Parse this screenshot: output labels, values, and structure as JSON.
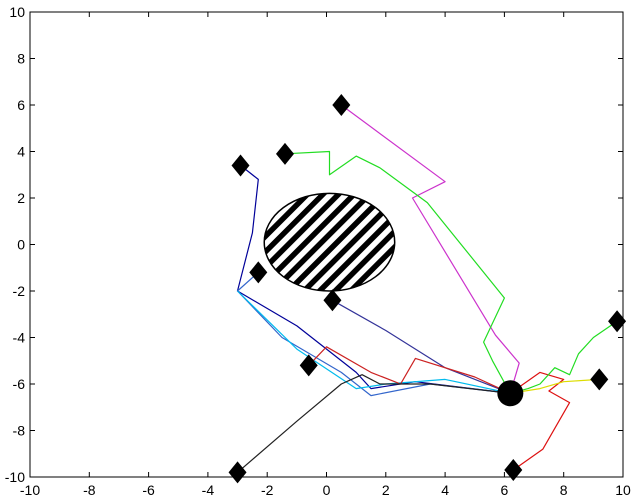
{
  "chart_data": {
    "type": "line",
    "xlim": [
      -10,
      10
    ],
    "ylim": [
      -10,
      10
    ],
    "xticks": [
      "-10",
      "-8",
      "-6",
      "-4",
      "-2",
      "0",
      "2",
      "4",
      "6",
      "8",
      "10"
    ],
    "yticks": [
      "10",
      "8",
      "6",
      "4",
      "2",
      "0",
      "-2",
      "-4",
      "-6",
      "-8",
      "-10"
    ],
    "grid": false,
    "legend": "none",
    "obstacle": {
      "type": "ellipse",
      "center": [
        0.1,
        0.1
      ],
      "radius_x": 2.2,
      "radius_y": 2.1,
      "fill": "hatched"
    },
    "target": {
      "x": 6.2,
      "y": -6.4
    },
    "start_markers": [
      {
        "x": 0.5,
        "y": 6.0
      },
      {
        "x": -1.4,
        "y": 3.9
      },
      {
        "x": -2.9,
        "y": 3.4
      },
      {
        "x": -2.3,
        "y": -1.2
      },
      {
        "x": 0.2,
        "y": -2.4
      },
      {
        "x": -0.6,
        "y": -5.2
      },
      {
        "x": -3.0,
        "y": -9.8
      },
      {
        "x": 6.3,
        "y": -9.7
      },
      {
        "x": 9.2,
        "y": -5.8
      },
      {
        "x": 9.8,
        "y": -3.3
      }
    ],
    "series": [
      {
        "color": "#cc33cc",
        "x": [
          0.5,
          4.0,
          2.9,
          5.7,
          6.5,
          6.2
        ],
        "y": [
          6.0,
          2.7,
          2.0,
          -3.9,
          -5.1,
          -6.4
        ]
      },
      {
        "color": "#22dd22",
        "x": [
          -1.4,
          0.1,
          0.1,
          1.0,
          1.8,
          3.4,
          6.0,
          5.3,
          5.6,
          6.2
        ],
        "y": [
          3.9,
          4.0,
          3.0,
          3.8,
          3.3,
          1.8,
          -2.3,
          -4.2,
          -5.0,
          -6.4
        ]
      },
      {
        "color": "#000099",
        "x": [
          -2.9,
          -2.3,
          -2.5,
          -3.0,
          -1.0,
          1.0,
          1.5,
          3.0,
          6.2
        ],
        "y": [
          3.4,
          2.8,
          0.5,
          -2.0,
          -3.5,
          -5.5,
          -6.2,
          -5.9,
          -6.4
        ]
      },
      {
        "color": "#3366cc",
        "x": [
          -2.3,
          -3.0,
          -1.5,
          0.5,
          1.5,
          3.5,
          6.2
        ],
        "y": [
          -1.2,
          -2.0,
          -4.0,
          -5.5,
          -6.5,
          -6.0,
          -6.4
        ]
      },
      {
        "color": "#00bbee",
        "x": [
          -3.0,
          -1.0,
          1.0,
          2.0,
          4.0,
          6.2
        ],
        "y": [
          -2.0,
          -4.5,
          -6.2,
          -6.0,
          -5.8,
          -6.4
        ]
      },
      {
        "color": "#333399",
        "x": [
          0.2,
          2.0,
          4.0,
          6.2
        ],
        "y": [
          -2.4,
          -3.7,
          -5.3,
          -6.4
        ]
      },
      {
        "color": "#cc2222",
        "x": [
          -0.6,
          0.0,
          1.5,
          2.5,
          3.0,
          5.0,
          6.2
        ],
        "y": [
          -5.2,
          -4.4,
          -5.5,
          -6.0,
          -4.9,
          -5.7,
          -6.4
        ]
      },
      {
        "color": "#222222",
        "x": [
          -3.0,
          -1.0,
          0.5,
          1.2,
          1.8,
          3.5,
          6.2
        ],
        "y": [
          -9.8,
          -7.6,
          -6.0,
          -5.6,
          -6.0,
          -6.0,
          -6.4
        ]
      },
      {
        "color": "#dd1111",
        "x": [
          6.3,
          7.3,
          8.2,
          7.5,
          8.0,
          7.2,
          6.2
        ],
        "y": [
          -9.7,
          -8.8,
          -6.8,
          -6.3,
          -5.8,
          -5.5,
          -6.4
        ]
      },
      {
        "color": "#dddd00",
        "x": [
          9.2,
          8.0,
          7.2,
          6.2
        ],
        "y": [
          -5.8,
          -5.9,
          -6.2,
          -6.4
        ]
      },
      {
        "color": "#22dd22",
        "x": [
          9.8,
          9.0,
          8.5,
          8.2,
          7.7,
          7.2,
          6.8,
          6.2
        ],
        "y": [
          -3.3,
          -4.0,
          -4.7,
          -5.6,
          -5.3,
          -6.0,
          -6.2,
          -6.4
        ]
      }
    ]
  }
}
